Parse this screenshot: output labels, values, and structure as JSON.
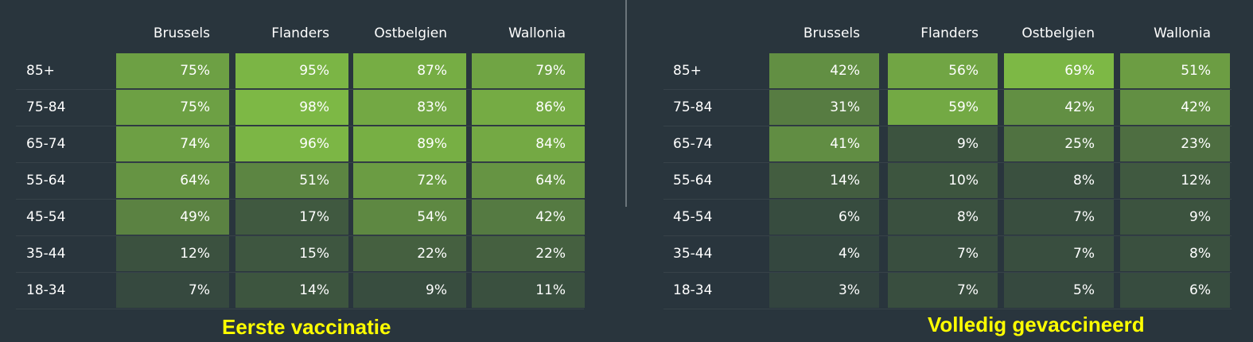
{
  "chart_data": [
    {
      "type": "heatmap",
      "title": "Eerste vaccinatie",
      "columns": [
        "Brussels",
        "Flanders",
        "Ostbelgien",
        "Wallonia"
      ],
      "rows": [
        "85+",
        "75-84",
        "65-74",
        "55-64",
        "45-54",
        "35-44",
        "18-34"
      ],
      "values": [
        [
          75,
          95,
          87,
          79
        ],
        [
          75,
          98,
          83,
          86
        ],
        [
          74,
          96,
          89,
          84
        ],
        [
          64,
          51,
          72,
          64
        ],
        [
          49,
          17,
          54,
          42
        ],
        [
          12,
          15,
          22,
          22
        ],
        [
          7,
          14,
          9,
          11
        ]
      ],
      "labels": [
        [
          "75%",
          "95%",
          "87%",
          "79%"
        ],
        [
          "75%",
          "98%",
          "83%",
          "86%"
        ],
        [
          "74%",
          "96%",
          "89%",
          "84%"
        ],
        [
          "64%",
          "51%",
          "72%",
          "64%"
        ],
        [
          "49%",
          "17%",
          "54%",
          "42%"
        ],
        [
          "12%",
          "15%",
          "22%",
          "22%"
        ],
        [
          "7%",
          "14%",
          "9%",
          "11%"
        ]
      ],
      "color_min": "#2c3a3e",
      "color_max": "#7db845"
    },
    {
      "type": "heatmap",
      "title": "Volledig gevaccineerd",
      "columns": [
        "Brussels",
        "Flanders",
        "Ostbelgien",
        "Wallonia"
      ],
      "rows": [
        "85+",
        "75-84",
        "65-74",
        "55-64",
        "45-54",
        "35-44",
        "18-34"
      ],
      "values": [
        [
          42,
          56,
          69,
          51
        ],
        [
          31,
          59,
          42,
          42
        ],
        [
          41,
          9,
          25,
          23
        ],
        [
          14,
          10,
          8,
          12
        ],
        [
          6,
          8,
          7,
          9
        ],
        [
          4,
          7,
          7,
          8
        ],
        [
          3,
          7,
          5,
          6
        ]
      ],
      "labels": [
        [
          "42%",
          "56%",
          "69%",
          "51%"
        ],
        [
          "31%",
          "59%",
          "42%",
          "42%"
        ],
        [
          "41%",
          "9%",
          "25%",
          "23%"
        ],
        [
          "14%",
          "10%",
          "8%",
          "12%"
        ],
        [
          "6%",
          "8%",
          "7%",
          "9%"
        ],
        [
          "4%",
          "7%",
          "7%",
          "8%"
        ],
        [
          "3%",
          "7%",
          "5%",
          "6%"
        ]
      ],
      "color_min": "#2c3a3e",
      "color_max": "#7db845"
    }
  ],
  "colors": {
    "background": "#29353d",
    "title": "#ffff00",
    "text": "#ffffff"
  }
}
